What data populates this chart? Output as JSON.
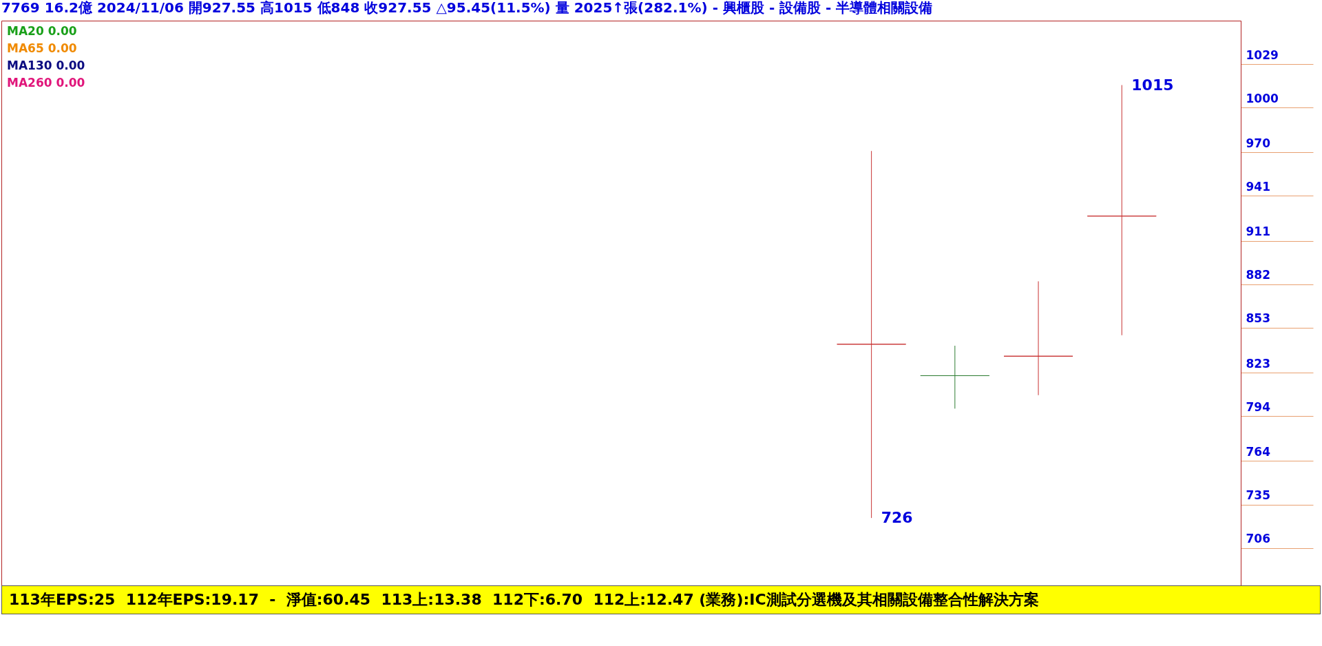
{
  "chart_data": {
    "type": "candlestick",
    "title": "7769 16.2億 2024/11/06 開927.55 高1015 低848 收927.55 △95.45(11.5%) 量 2025↑張(282.1%) - 興櫃股 - 設備股 - 半導體相關設備",
    "categories": [
      null,
      null,
      null,
      null,
      null,
      null,
      null,
      null,
      null,
      null,
      null,
      null,
      null,
      null,
      null
    ],
    "ohlc": [
      null,
      null,
      null,
      null,
      null,
      null,
      null,
      null,
      null,
      null,
      [
        842,
        971,
        726,
        842
      ],
      [
        821,
        841,
        799,
        821
      ],
      [
        834,
        884,
        808,
        834
      ],
      [
        927.55,
        1015,
        848,
        927.55
      ],
      null
    ],
    "colors": [
      null,
      null,
      null,
      null,
      null,
      null,
      null,
      null,
      null,
      null,
      "#c83232",
      "#2e7d32",
      "#c83232",
      "#c83232",
      null
    ],
    "series": [
      {
        "name": "MA20 0.00",
        "type": "line",
        "color": "#1aa01a",
        "values": [
          null,
          null,
          null,
          null,
          null,
          null,
          null,
          null,
          null,
          null,
          null,
          null,
          null,
          null,
          null
        ]
      },
      {
        "name": "MA65 0.00",
        "type": "line",
        "color": "#f08a00",
        "values": [
          null,
          null,
          null,
          null,
          null,
          null,
          null,
          null,
          null,
          null,
          null,
          null,
          null,
          null,
          null
        ]
      },
      {
        "name": "MA130 0.00",
        "type": "line",
        "color": "#0a0a80",
        "values": [
          null,
          null,
          null,
          null,
          null,
          null,
          null,
          null,
          null,
          null,
          null,
          null,
          null,
          null,
          null
        ]
      },
      {
        "name": "MA260 0.00",
        "type": "line",
        "color": "#e0157a",
        "values": [
          null,
          null,
          null,
          null,
          null,
          null,
          null,
          null,
          null,
          null,
          null,
          null,
          null,
          null,
          null
        ]
      }
    ],
    "ylim": [
      681,
      1058
    ],
    "yticks": [
      1029,
      1000,
      970,
      941,
      911,
      882,
      853,
      823,
      794,
      764,
      735,
      706
    ],
    "annotations": [
      "1015",
      "726",
      "113年EPS:25  112年EPS:19.17  -  淨值:60.45  113上:13.38  112下:6.70  112上:12.47 (業務):IC測試分選機及其相關設備整合性解決方案"
    ]
  }
}
